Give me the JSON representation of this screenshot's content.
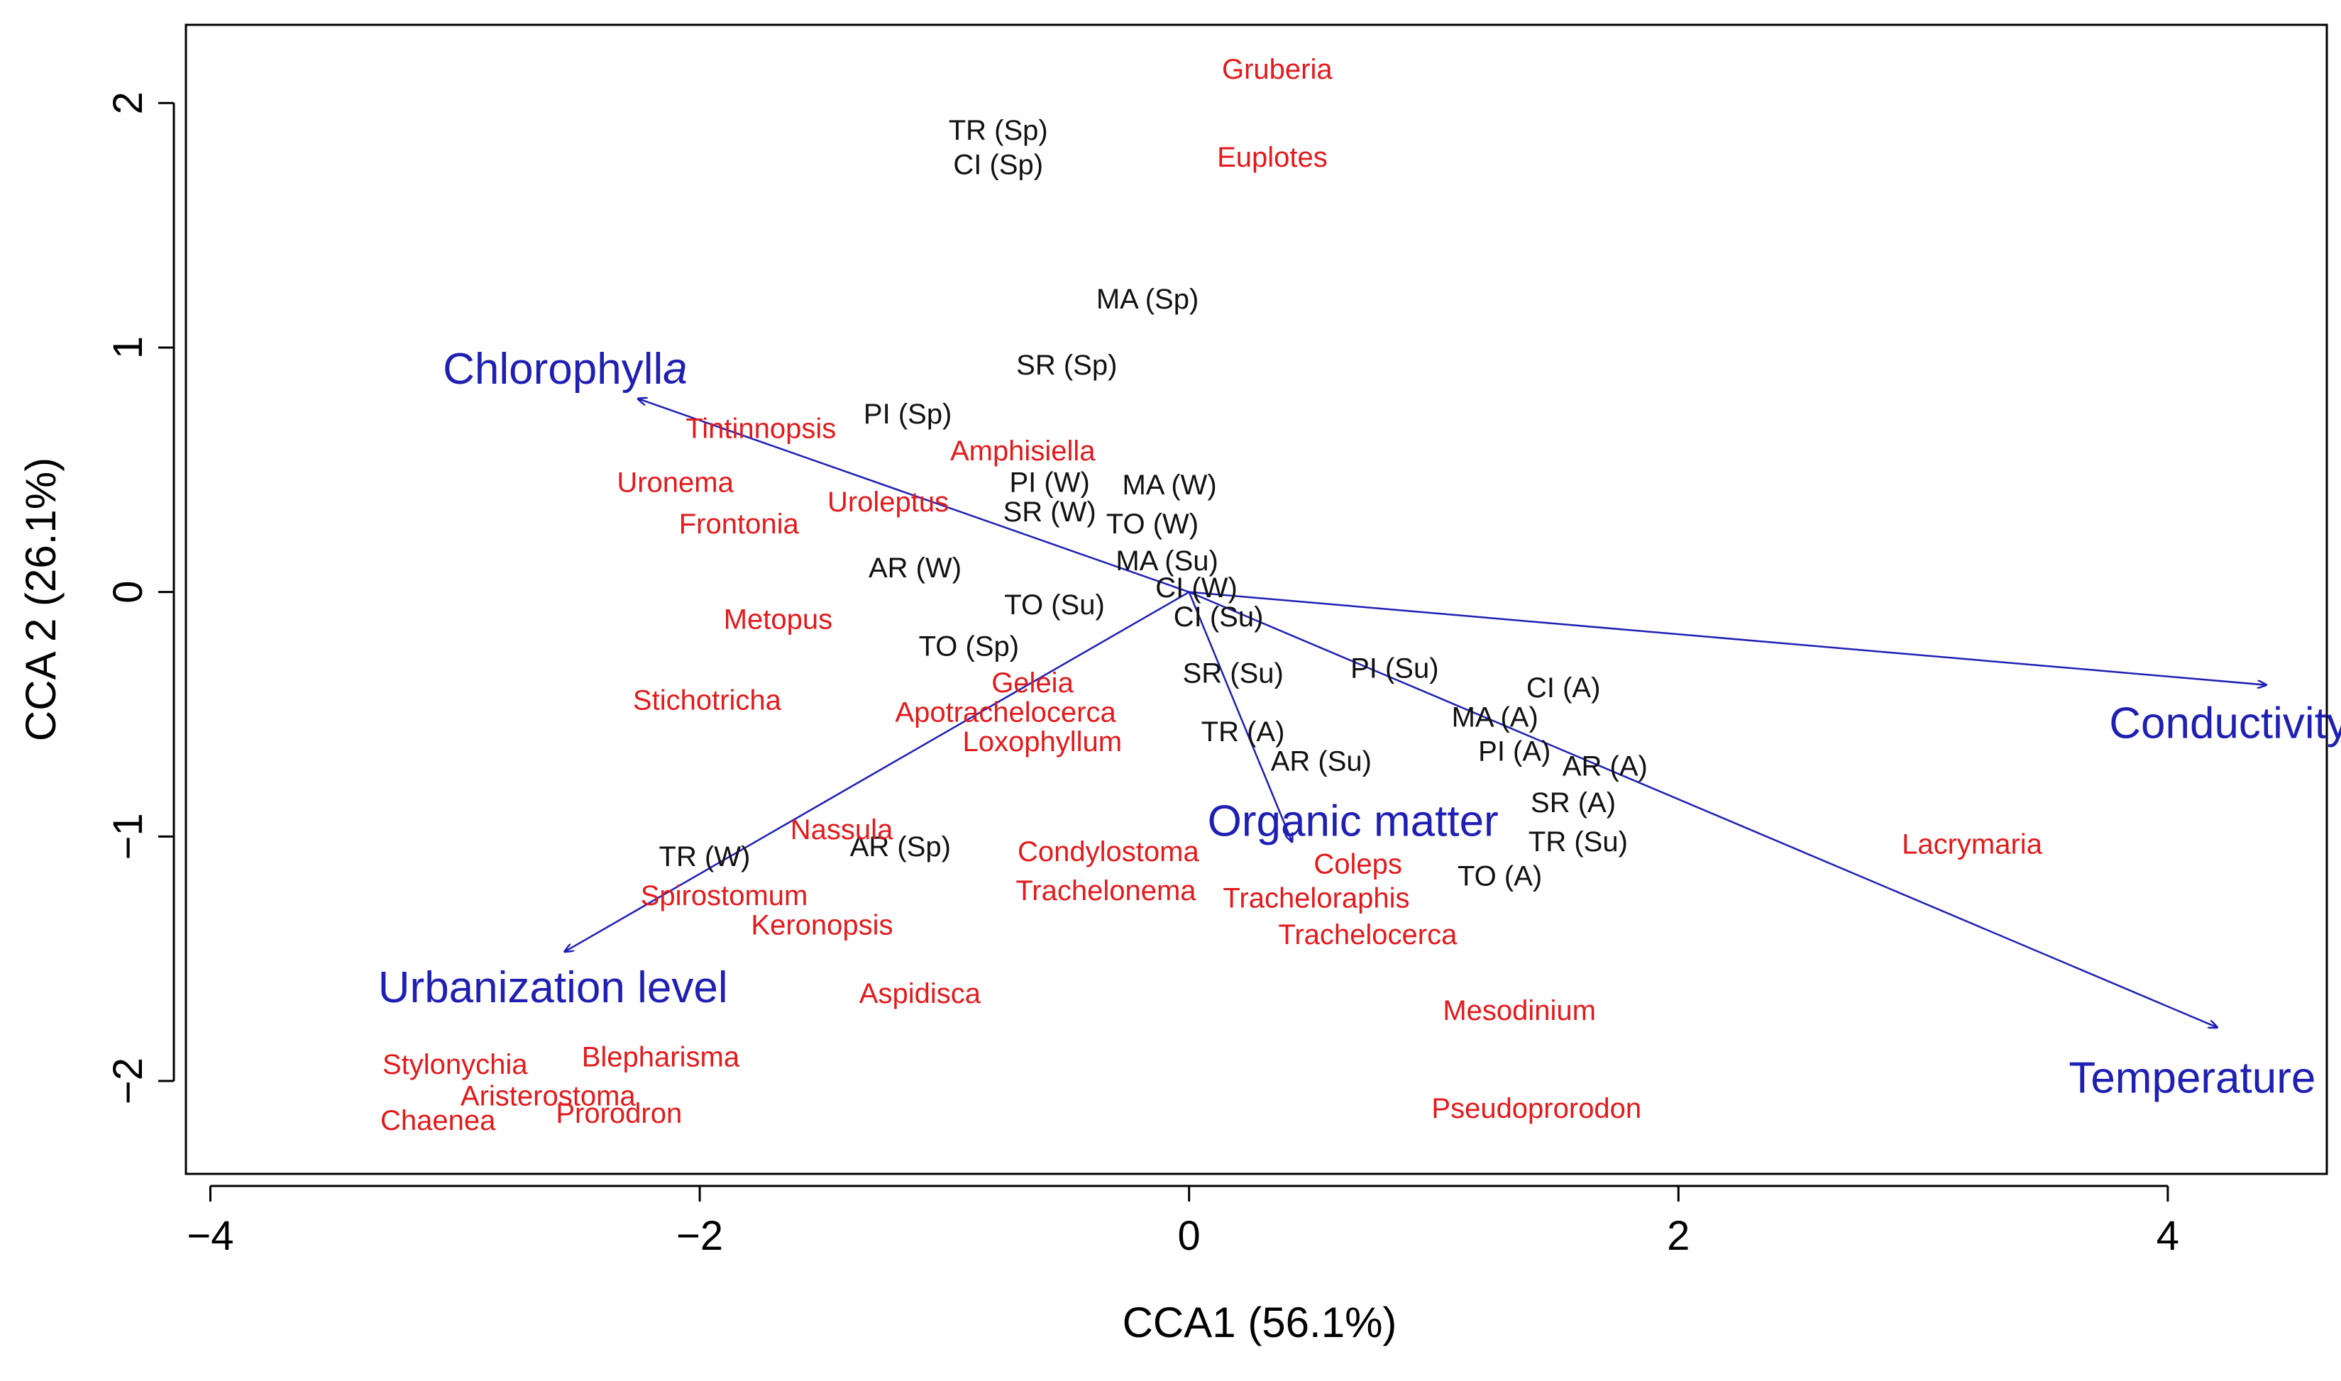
{
  "chart_data": {
    "type": "scatter",
    "subtype": "CCA biplot",
    "title": "",
    "xlabel": "CCA1 (56.1%)",
    "ylabel": "CCA 2 (26.1%)",
    "xlim": [
      -4.1,
      4.65
    ],
    "ylim": [
      -2.38,
      2.32
    ],
    "xticks": [
      -4,
      -2,
      0,
      2,
      4
    ],
    "yticks": [
      -2,
      -1,
      0,
      1,
      2
    ],
    "xtick_labels": [
      "−4",
      "−2",
      "0",
      "2",
      "4"
    ],
    "ytick_labels": [
      "−2",
      "−1",
      "0",
      "1",
      "2"
    ],
    "colors": {
      "sites": "#111111",
      "species": "#e31a1c",
      "env": "#1f1fb4",
      "axes": "#000000"
    },
    "env_vectors": [
      {
        "name": "Chlorophyll",
        "name_suffix": "a",
        "end": [
          -2.25,
          0.79
        ],
        "label": [
          -2.55,
          0.9
        ]
      },
      {
        "name": "Conductivity",
        "name_suffix": "",
        "end": [
          4.4,
          -0.38
        ],
        "label": [
          4.25,
          -0.55
        ]
      },
      {
        "name": "Temperature",
        "name_suffix": "",
        "end": [
          4.2,
          -1.78
        ],
        "label": [
          4.1,
          -2.0
        ]
      },
      {
        "name": "Urbanization level",
        "name_suffix": "",
        "end": [
          -2.55,
          -1.47
        ],
        "label": [
          -2.6,
          -1.63
        ]
      },
      {
        "name": "Organic matter",
        "name_suffix": "",
        "end": [
          0.42,
          -1.02
        ],
        "label": [
          0.67,
          -0.95
        ]
      }
    ],
    "sites": [
      {
        "label": "TR (Sp)",
        "x": -0.78,
        "y": 1.88
      },
      {
        "label": "CI (Sp)",
        "x": -0.78,
        "y": 1.74
      },
      {
        "label": "MA (Sp)",
        "x": -0.17,
        "y": 1.19
      },
      {
        "label": "SR (Sp)",
        "x": -0.5,
        "y": 0.92
      },
      {
        "label": "PI (Sp)",
        "x": -1.15,
        "y": 0.72
      },
      {
        "label": "PI (W)",
        "x": -0.57,
        "y": 0.44
      },
      {
        "label": "MA (W)",
        "x": -0.08,
        "y": 0.43
      },
      {
        "label": "SR (W)",
        "x": -0.57,
        "y": 0.32
      },
      {
        "label": "TO (W)",
        "x": -0.15,
        "y": 0.27
      },
      {
        "label": "AR (W)",
        "x": -1.12,
        "y": 0.09
      },
      {
        "label": "MA (Su)",
        "x": -0.09,
        "y": 0.12
      },
      {
        "label": "CI (W)",
        "x": 0.03,
        "y": 0.01
      },
      {
        "label": "TO (Su)",
        "x": -0.55,
        "y": -0.06
      },
      {
        "label": "CI (Su)",
        "x": 0.12,
        "y": -0.11
      },
      {
        "label": "TO (Sp)",
        "x": -0.9,
        "y": -0.23
      },
      {
        "label": "SR (Su)",
        "x": 0.18,
        "y": -0.34
      },
      {
        "label": "PI (Su)",
        "x": 0.84,
        "y": -0.32
      },
      {
        "label": "CI (A)",
        "x": 1.53,
        "y": -0.4
      },
      {
        "label": "MA (A)",
        "x": 1.25,
        "y": -0.52
      },
      {
        "label": "TR (A)",
        "x": 0.22,
        "y": -0.58
      },
      {
        "label": "PI (A)",
        "x": 1.33,
        "y": -0.66
      },
      {
        "label": "AR (A)",
        "x": 1.7,
        "y": -0.72
      },
      {
        "label": "AR (Su)",
        "x": 0.54,
        "y": -0.7
      },
      {
        "label": "SR (A)",
        "x": 1.57,
        "y": -0.87
      },
      {
        "label": "TR (Su)",
        "x": 1.59,
        "y": -1.03
      },
      {
        "label": "TR (W)",
        "x": -1.98,
        "y": -1.09
      },
      {
        "label": "AR (Sp)",
        "x": -1.18,
        "y": -1.05
      },
      {
        "label": "TO (A)",
        "x": 1.27,
        "y": -1.17
      }
    ],
    "species": [
      {
        "label": "Gruberia",
        "x": 0.36,
        "y": 2.13
      },
      {
        "label": "Euplotes",
        "x": 0.34,
        "y": 1.77
      },
      {
        "label": "Tintinnopsis",
        "x": -1.75,
        "y": 0.66
      },
      {
        "label": "Amphisiella",
        "x": -0.68,
        "y": 0.57
      },
      {
        "label": "Uronema",
        "x": -2.1,
        "y": 0.44
      },
      {
        "label": "Uroleptus",
        "x": -1.23,
        "y": 0.36
      },
      {
        "label": "Frontonia",
        "x": -1.84,
        "y": 0.27
      },
      {
        "label": "Metopus",
        "x": -1.68,
        "y": -0.12
      },
      {
        "label": "Stichotricha",
        "x": -1.97,
        "y": -0.45
      },
      {
        "label": "Geleia",
        "x": -0.64,
        "y": -0.38
      },
      {
        "label": "Apotrachelocerca",
        "x": -0.75,
        "y": -0.5
      },
      {
        "label": "Loxophyllum",
        "x": -0.6,
        "y": -0.62
      },
      {
        "label": "Nassula",
        "x": -1.42,
        "y": -0.98
      },
      {
        "label": "Condylostoma",
        "x": -0.33,
        "y": -1.07
      },
      {
        "label": "Coleps",
        "x": 0.69,
        "y": -1.12
      },
      {
        "label": "Spirostomum",
        "x": -1.9,
        "y": -1.25
      },
      {
        "label": "Trachelonema",
        "x": -0.34,
        "y": -1.23
      },
      {
        "label": "Tracheloraphis",
        "x": 0.52,
        "y": -1.26
      },
      {
        "label": "Keronopsis",
        "x": -1.5,
        "y": -1.37
      },
      {
        "label": "Trachelocerca",
        "x": 0.73,
        "y": -1.41
      },
      {
        "label": "Lacrymaria",
        "x": 3.2,
        "y": -1.04
      },
      {
        "label": "Aspidisca",
        "x": -1.1,
        "y": -1.65
      },
      {
        "label": "Mesodinium",
        "x": 1.35,
        "y": -1.72
      },
      {
        "label": "Blepharisma",
        "x": -2.16,
        "y": -1.91
      },
      {
        "label": "Stylonychia",
        "x": -3.0,
        "y": -1.94
      },
      {
        "label": "Aristerostoma",
        "x": -2.62,
        "y": -2.07
      },
      {
        "label": "Prorodron",
        "x": -2.33,
        "y": -2.14
      },
      {
        "label": "Chaenea",
        "x": -3.07,
        "y": -2.17
      },
      {
        "label": "Pseudoprorodon",
        "x": 1.42,
        "y": -2.12
      }
    ]
  }
}
